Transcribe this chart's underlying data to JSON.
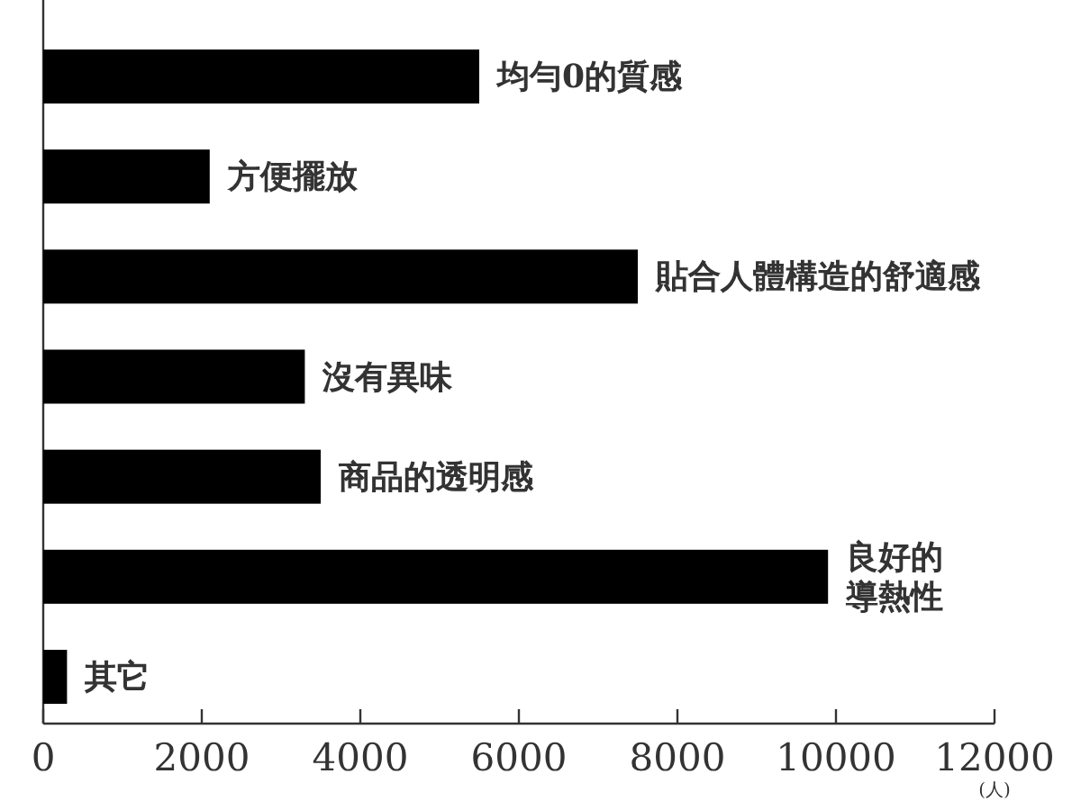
{
  "chart_data": {
    "type": "bar",
    "orientation": "horizontal",
    "categories": [
      "均勻0的質感",
      "方便擺放",
      "貼合人體構造的舒適感",
      "沒有異味",
      "商品的透明感",
      "良好的導熱性",
      "其它"
    ],
    "values": [
      5500,
      2100,
      7500,
      3300,
      3500,
      9900,
      300
    ],
    "color": "#000000",
    "data_labels": false,
    "xlim": [
      0,
      12000
    ],
    "xticks": [
      0,
      2000,
      4000,
      6000,
      8000,
      10000,
      12000
    ],
    "xlabel": "(人)",
    "tick_labels": "x",
    "grid": false
  }
}
